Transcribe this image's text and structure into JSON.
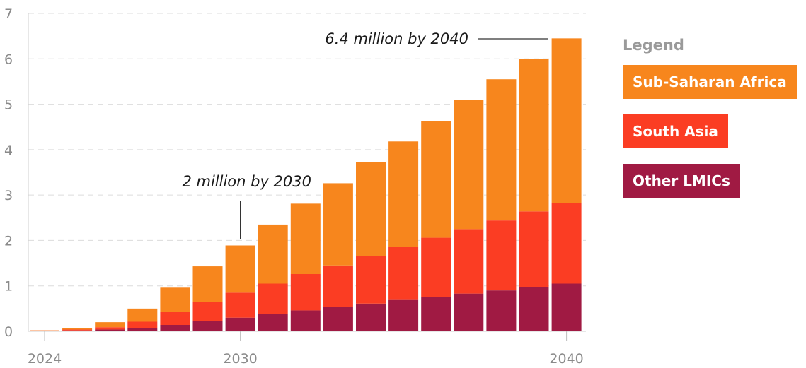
{
  "chart_data": {
    "type": "bar",
    "stacked": true,
    "categories": [
      "2024",
      "2025",
      "2026",
      "2027",
      "2028",
      "2029",
      "2030",
      "2031",
      "2032",
      "2033",
      "2034",
      "2035",
      "2036",
      "2037",
      "2038",
      "2039",
      "2040"
    ],
    "x_tick_labels": [
      "2024",
      "2030",
      "2040"
    ],
    "y_tick_labels": [
      "0",
      "1",
      "2",
      "3",
      "4",
      "5",
      "6",
      "7"
    ],
    "ylim": [
      0,
      7
    ],
    "grid": true,
    "legend_title": "Legend",
    "legend_position": "right",
    "series": [
      {
        "name": "Other LMICs",
        "color": "#a01a43",
        "values": [
          0.01,
          0.02,
          0.04,
          0.07,
          0.14,
          0.22,
          0.3,
          0.38,
          0.46,
          0.54,
          0.61,
          0.69,
          0.76,
          0.83,
          0.9,
          0.98,
          1.05
        ]
      },
      {
        "name": "South Asia",
        "color": "#fb3d23",
        "values": [
          0.01,
          0.02,
          0.05,
          0.14,
          0.28,
          0.42,
          0.55,
          0.67,
          0.8,
          0.91,
          1.05,
          1.17,
          1.3,
          1.42,
          1.54,
          1.66,
          1.78
        ]
      },
      {
        "name": "Sub-Saharan Africa",
        "color": "#f7861d",
        "values": [
          0.0,
          0.03,
          0.11,
          0.29,
          0.54,
          0.79,
          1.04,
          1.3,
          1.55,
          1.81,
          2.06,
          2.32,
          2.57,
          2.85,
          3.11,
          3.36,
          3.62
        ]
      }
    ],
    "annotations": [
      {
        "text": "2 million by 2030",
        "x": "2030",
        "y": 1.9
      },
      {
        "text": "6.4 million by 2040",
        "x": "2040",
        "y": 6.45
      }
    ]
  }
}
